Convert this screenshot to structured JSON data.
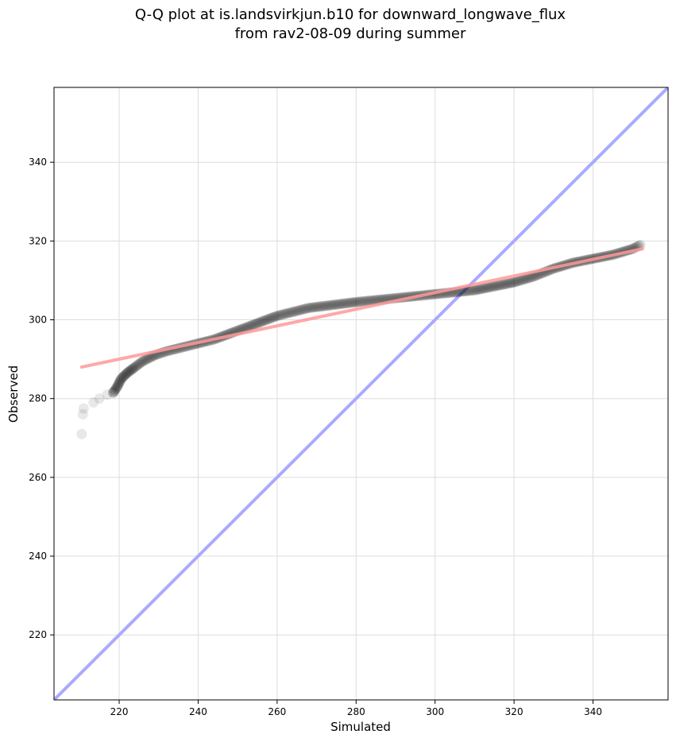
{
  "chart_data": {
    "type": "scatter",
    "title_line1": "Q-Q plot at is.landsvirkjun.b10 for downward_longwave_flux",
    "title_line2": "from rav2-08-09 during summer",
    "xlabel": "Simulated",
    "ylabel": "Observed",
    "xlim": [
      203.5,
      359.0
    ],
    "ylim": [
      203.5,
      359.0
    ],
    "x_ticks": [
      220,
      240,
      260,
      280,
      300,
      320,
      340
    ],
    "y_ticks": [
      220,
      240,
      260,
      280,
      300,
      320,
      340
    ],
    "grid": true,
    "identity_line": {
      "from": [
        203.5,
        203.5
      ],
      "to": [
        359.0,
        359.0
      ],
      "color": "#aaaaff"
    },
    "fit_line": {
      "from": [
        210.5,
        288.0
      ],
      "to": [
        352.5,
        318.0
      ],
      "color": "#ff9999"
    },
    "point_color": "#000000",
    "quantile_curve": [
      [
        210.5,
        271.0
      ],
      [
        210.8,
        276.0
      ],
      [
        211.0,
        277.5
      ],
      [
        213.5,
        279.0
      ],
      [
        215.0,
        280.0
      ],
      [
        217.0,
        281.0
      ],
      [
        218.5,
        281.5
      ],
      [
        219.5,
        283.0
      ],
      [
        220.5,
        285.0
      ],
      [
        222.0,
        286.5
      ],
      [
        224.0,
        288.0
      ],
      [
        226.0,
        289.5
      ],
      [
        229.0,
        291.0
      ],
      [
        232.0,
        292.0
      ],
      [
        236.0,
        293.0
      ],
      [
        240.0,
        294.0
      ],
      [
        244.0,
        295.0
      ],
      [
        248.0,
        296.5
      ],
      [
        252.0,
        298.0
      ],
      [
        256.0,
        299.5
      ],
      [
        260.0,
        301.0
      ],
      [
        264.0,
        302.0
      ],
      [
        268.0,
        303.0
      ],
      [
        272.0,
        303.5
      ],
      [
        276.0,
        304.0
      ],
      [
        280.0,
        304.5
      ],
      [
        285.0,
        305.0
      ],
      [
        290.0,
        305.5
      ],
      [
        295.0,
        306.0
      ],
      [
        300.0,
        306.5
      ],
      [
        305.0,
        307.0
      ],
      [
        310.0,
        307.5
      ],
      [
        315.0,
        308.5
      ],
      [
        320.0,
        309.5
      ],
      [
        325.0,
        311.0
      ],
      [
        330.0,
        313.0
      ],
      [
        335.0,
        314.5
      ],
      [
        340.0,
        315.5
      ],
      [
        345.0,
        316.5
      ],
      [
        350.0,
        318.0
      ],
      [
        352.0,
        319.0
      ]
    ]
  }
}
